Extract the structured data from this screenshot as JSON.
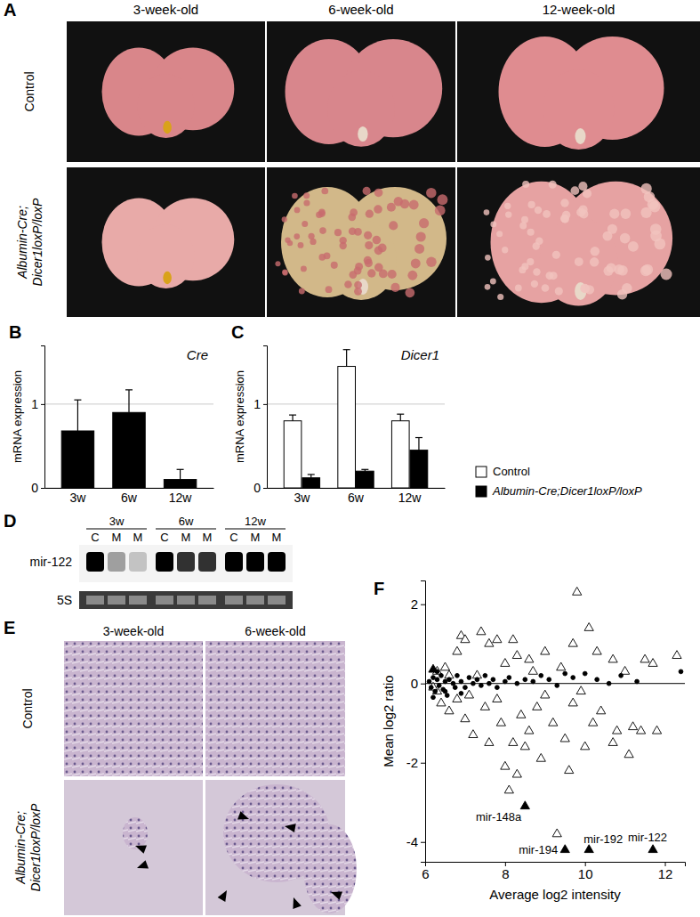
{
  "figure": {
    "panel_a": {
      "label": "A",
      "columns": [
        "3-week-old",
        "6-week-old",
        "12-week-old"
      ],
      "rows": [
        [
          "Control"
        ],
        [
          "Albumin-Cre;",
          "Dicer1loxP/loxP"
        ]
      ]
    },
    "panel_d": {
      "label": "D",
      "groups": [
        "3w",
        "6w",
        "12w"
      ],
      "lanes": [
        "C",
        "M",
        "M",
        "C",
        "M",
        "M",
        "C",
        "M",
        "M"
      ],
      "rows": [
        "mir-122",
        "5S"
      ]
    },
    "panel_e": {
      "label": "E",
      "columns": [
        "3-week-old",
        "6-week-old"
      ],
      "rows": [
        [
          "Control"
        ],
        [
          "Albumin-Cre;",
          "Dicer1loxP/loxP"
        ]
      ]
    }
  },
  "chart_data": [
    {
      "type": "bar",
      "panel": "B",
      "title": "Cre",
      "y_label": "mRNA expression",
      "categories": [
        "3w",
        "6w",
        "12w"
      ],
      "values": [
        0.68,
        0.9,
        0.1
      ],
      "errors": [
        0.37,
        0.27,
        0.12
      ],
      "color": "#000000",
      "ylim": [
        0,
        1.7
      ],
      "yticks": [
        0,
        1
      ],
      "grid": true
    },
    {
      "type": "bar",
      "panel": "C",
      "title": "Dicer1",
      "y_label": "mRNA expression",
      "categories": [
        "3w",
        "6w",
        "12w"
      ],
      "series": [
        {
          "name": "Control",
          "color": "#ffffff",
          "values": [
            0.8,
            1.45,
            0.8
          ],
          "errors": [
            0.07,
            0.2,
            0.08
          ]
        },
        {
          "name": "Albumin-Cre;Dicer1loxP/loxP",
          "color": "#000000",
          "values": [
            0.12,
            0.2,
            0.45
          ],
          "errors": [
            0.04,
            0.02,
            0.15
          ]
        }
      ],
      "ylim": [
        0,
        1.7
      ],
      "yticks": [
        0,
        1
      ],
      "grid": true,
      "legend": "bottom-right"
    },
    {
      "type": "scatter",
      "panel": "F",
      "x_label": "Average log2 intensity",
      "y_label": "Mean log2 ratio",
      "xlim": [
        6,
        12.5
      ],
      "ylim": [
        -4.5,
        2.6
      ],
      "xticks": [
        6,
        8,
        10,
        12
      ],
      "yticks": [
        -4,
        -2,
        0,
        2
      ],
      "series": [
        {
          "marker": "triangle-open",
          "color": "#000000",
          "x": [
            6.9,
            7.0,
            6.8,
            7.4,
            7.6,
            7.8,
            8.0,
            8.2,
            8.3,
            8.6,
            9.0,
            9.4,
            9.8,
            9.7,
            10.1,
            10.3,
            10.7,
            11.0,
            11.5,
            11.7,
            12.3,
            6.5,
            6.6,
            6.3,
            6.4,
            6.6,
            6.8,
            7.0,
            7.2,
            7.1,
            7.5,
            7.6,
            7.8,
            7.9,
            8.0,
            8.1,
            8.2,
            8.3,
            8.4,
            8.5,
            8.6,
            8.8,
            8.9,
            9.0,
            9.2,
            9.3,
            9.5,
            9.6,
            9.7,
            10.0,
            10.2,
            10.4,
            10.7,
            10.8,
            11.1,
            11.2,
            11.4,
            11.8,
            6.2,
            6.3,
            7.3,
            8.7,
            9.9
          ],
          "values": [
            1.2,
            1.1,
            0.8,
            1.3,
            1.0,
            1.1,
            0.5,
            1.1,
            0.7,
            0.6,
            0.8,
            0.4,
            2.3,
            1.0,
            1.4,
            0.8,
            0.6,
            0.3,
            0.6,
            0.5,
            0.7,
            0.4,
            0.2,
            -0.2,
            -0.5,
            -0.7,
            -0.4,
            -0.9,
            -1.3,
            -0.3,
            -0.6,
            -1.5,
            -0.4,
            -1.0,
            -2.1,
            -2.7,
            -1.5,
            -2.3,
            -0.8,
            -1.6,
            -1.2,
            -0.6,
            -1.9,
            -0.3,
            -1.0,
            -3.8,
            -1.4,
            -2.2,
            -0.5,
            -1.6,
            -1.0,
            -0.7,
            -1.5,
            -1.2,
            -1.8,
            -1.1,
            -1.2,
            -1.2,
            -0.1,
            0.3,
            0.2,
            0.3,
            -0.2
          ]
        },
        {
          "marker": "circle",
          "color": "#000000",
          "x": [
            6.1,
            6.15,
            6.2,
            6.25,
            6.3,
            6.35,
            6.4,
            6.45,
            6.5,
            6.55,
            6.6,
            6.7,
            6.75,
            6.8,
            6.9,
            7.0,
            7.1,
            7.2,
            7.3,
            7.4,
            7.5,
            7.6,
            7.7,
            7.8,
            8.0,
            8.1,
            8.3,
            8.5,
            8.7,
            8.9,
            9.1,
            9.3,
            9.5,
            9.7,
            10.0,
            10.3,
            10.6,
            10.9,
            11.3,
            12.4,
            6.2,
            6.3,
            6.5,
            6.9
          ],
          "values": [
            0.05,
            -0.1,
            0.15,
            -0.2,
            0.1,
            -0.05,
            0.2,
            -0.15,
            0.05,
            -0.3,
            0.1,
            0.0,
            -0.1,
            0.2,
            0.05,
            -0.1,
            0.15,
            0.0,
            0.1,
            -0.05,
            0.2,
            0.0,
            0.1,
            -0.1,
            0.05,
            0.15,
            0.0,
            0.1,
            0.05,
            0.2,
            0.1,
            -0.05,
            0.25,
            0.15,
            0.25,
            0.1,
            0.0,
            0.2,
            0.05,
            0.3,
            -0.35,
            0.3,
            -0.2,
            -0.25
          ]
        },
        {
          "marker": "triangle",
          "color": "#000000",
          "x": [
            6.2,
            8.5,
            9.5,
            10.1,
            11.7
          ],
          "values": [
            0.35,
            -3.1,
            -4.2,
            -4.2,
            -4.2
          ]
        }
      ],
      "annotations": [
        {
          "text": "mir-148a",
          "x": 8.5,
          "y": -3.1
        },
        {
          "text": "mir-194",
          "x": 9.5,
          "y": -4.2
        },
        {
          "text": "mir-192",
          "x": 10.1,
          "y": -4.2
        },
        {
          "text": "mir-122",
          "x": 11.7,
          "y": -4.2
        }
      ]
    }
  ]
}
